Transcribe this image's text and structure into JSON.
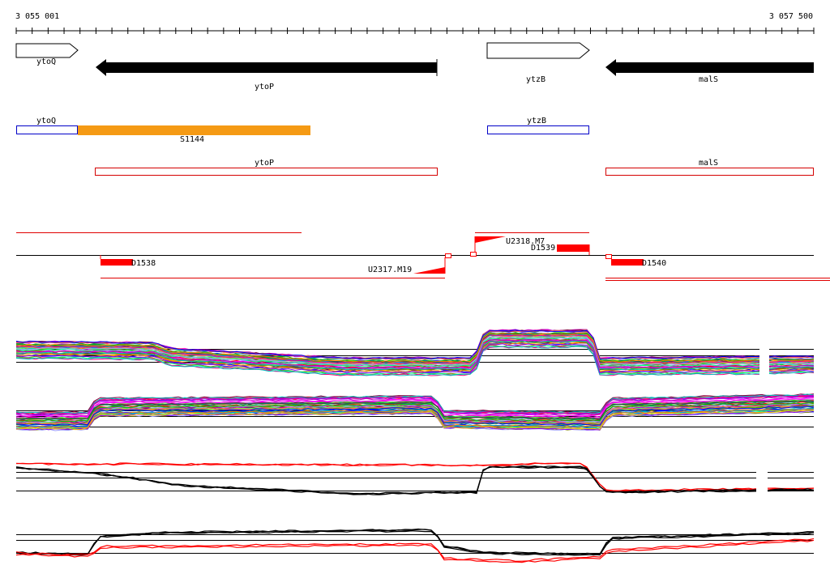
{
  "ruler": {
    "start_label": "3 055 001",
    "end_label": "3 057 500"
  },
  "colors": {
    "gene_forward": "#ffffff",
    "gene_reverse": "#000000",
    "annotation_forward": "#0000c8",
    "annotation_reverse": "#d40000",
    "feature_fill": "#f59a14",
    "segment": "#ff0000",
    "transcript_line": "#e00000"
  },
  "genes": [
    {
      "name": "ytoQ",
      "strand": "+"
    },
    {
      "name": "ytoP",
      "strand": "-"
    },
    {
      "name": "ytzB",
      "strand": "+"
    },
    {
      "name": "malS",
      "strand": "-"
    }
  ],
  "annotations": {
    "forward": [
      {
        "name": "ytoQ"
      },
      {
        "name": "ytzB"
      }
    ],
    "feature": {
      "name": "S1144"
    },
    "reverse": [
      {
        "name": "ytoP"
      },
      {
        "name": "malS"
      }
    ]
  },
  "segments": {
    "D1538": "D1538",
    "D1539": "D1539",
    "D1540": "D1540",
    "U2318": "U2318.M7",
    "U2317": "U2317.M19"
  },
  "expression_panels": [
    {
      "name": "forward-strand-multi-condition"
    },
    {
      "name": "reverse-strand-multi-condition"
    },
    {
      "name": "forward-strand-summary"
    },
    {
      "name": "reverse-strand-summary"
    }
  ]
}
